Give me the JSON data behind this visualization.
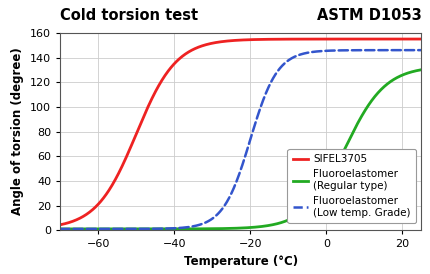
{
  "title_left": "Cold torsion test",
  "title_right": "ASTM D1053",
  "xlabel": "Temperature (°C)",
  "ylabel": "Angle of torsion (degree)",
  "xlim": [
    -70,
    25
  ],
  "ylim": [
    0,
    160
  ],
  "xticks": [
    -60,
    -40,
    -20,
    0,
    20
  ],
  "yticks": [
    0,
    20,
    40,
    60,
    80,
    100,
    120,
    140,
    160
  ],
  "series": [
    {
      "name": "SIFEL3705",
      "color": "#ee2222",
      "linestyle": "solid",
      "linewidth": 2.0,
      "midpoint": -50.0,
      "steepness": 0.19,
      "ymax": 155,
      "ymin": 1
    },
    {
      "name": "Fluoroelastomer\n(Regular type)",
      "color": "#22aa22",
      "linestyle": "solid",
      "linewidth": 2.0,
      "midpoint": 5.0,
      "steepness": 0.19,
      "ymax": 133,
      "ymin": 1
    },
    {
      "name": "Fluoroelastomer\n(Low temp. Grade)",
      "color": "#3355cc",
      "linestyle": "dashed",
      "linewidth": 1.8,
      "midpoint": -20.0,
      "steepness": 0.28,
      "ymax": 146,
      "ymin": 1
    }
  ],
  "background_color": "#ffffff",
  "grid_color": "#cccccc",
  "legend_fontsize": 7.5,
  "axis_label_fontsize": 8.5,
  "tick_fontsize": 8,
  "title_fontsize": 10.5
}
